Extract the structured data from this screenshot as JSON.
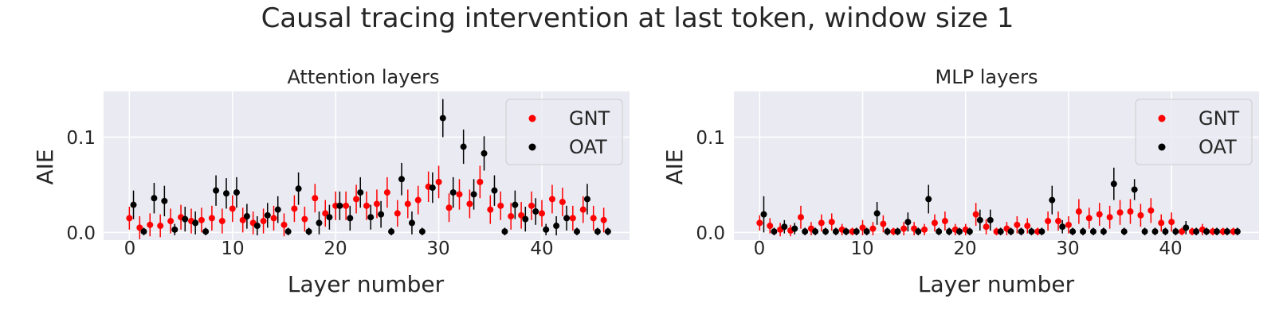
{
  "figure": {
    "title": "Causal tracing intervention at last token, window size 1"
  },
  "colors": {
    "panel_bg": "#eaeaf2",
    "grid": "#ffffff",
    "text": "#262626",
    "GNT": "#ff0000",
    "OAT": "#000000"
  },
  "chart_data": [
    {
      "type": "scatter",
      "title": "Attention layers",
      "xlabel": "Layer number",
      "ylabel": "AIE",
      "xlim": [
        -2.5,
        48.5
      ],
      "ylim": [
        -0.008,
        0.148
      ],
      "xticks": [
        0,
        10,
        20,
        30,
        40
      ],
      "xtick_labels": [
        "0",
        "10",
        "20",
        "30",
        "40"
      ],
      "yticks": [
        0.0,
        0.1
      ],
      "ytick_labels": [
        "0.0",
        "0.1"
      ],
      "legend": {
        "position": "top-right",
        "entries": [
          "GNT",
          "OAT"
        ]
      },
      "series": [
        {
          "name": "GNT",
          "x": [
            0,
            1,
            2,
            3,
            4,
            5,
            6,
            7,
            8,
            9,
            10,
            11,
            12,
            13,
            14,
            15,
            16,
            17,
            18,
            19,
            20,
            21,
            22,
            23,
            24,
            25,
            26,
            27,
            28,
            29,
            30,
            31,
            32,
            33,
            34,
            35,
            36,
            37,
            38,
            39,
            40,
            41,
            42,
            43,
            44,
            45,
            46
          ],
          "y": [
            0.015,
            0.005,
            0.008,
            0.007,
            0.012,
            0.016,
            0.012,
            0.013,
            0.015,
            0.012,
            0.025,
            0.013,
            0.01,
            0.012,
            0.015,
            0.008,
            0.025,
            0.014,
            0.036,
            0.02,
            0.028,
            0.028,
            0.035,
            0.028,
            0.03,
            0.042,
            0.02,
            0.03,
            0.034,
            0.048,
            0.053,
            0.026,
            0.04,
            0.03,
            0.053,
            0.024,
            0.028,
            0.017,
            0.018,
            0.028,
            0.02,
            0.035,
            0.032,
            0.015,
            0.024,
            0.015,
            0.013
          ],
          "err": [
            0.012,
            0.012,
            0.012,
            0.012,
            0.013,
            0.013,
            0.013,
            0.013,
            0.013,
            0.013,
            0.014,
            0.013,
            0.012,
            0.013,
            0.013,
            0.012,
            0.014,
            0.013,
            0.015,
            0.014,
            0.015,
            0.015,
            0.015,
            0.015,
            0.015,
            0.016,
            0.014,
            0.015,
            0.015,
            0.016,
            0.017,
            0.015,
            0.016,
            0.015,
            0.017,
            0.015,
            0.015,
            0.014,
            0.014,
            0.015,
            0.014,
            0.015,
            0.015,
            0.013,
            0.014,
            0.013,
            0.013
          ]
        },
        {
          "name": "OAT",
          "x": [
            0.4,
            1.4,
            2.4,
            3.4,
            4.4,
            5.4,
            6.4,
            7.4,
            8.4,
            9.4,
            10.4,
            11.4,
            12.4,
            13.4,
            14.4,
            15.4,
            16.4,
            17.4,
            18.4,
            19.4,
            20.4,
            21.4,
            22.4,
            23.4,
            24.4,
            25.4,
            26.4,
            27.4,
            28.4,
            29.4,
            30.4,
            31.4,
            32.4,
            33.4,
            34.4,
            35.4,
            36.4,
            37.4,
            38.4,
            39.4,
            40.4,
            41.4,
            42.4,
            43.4,
            44.4,
            45.4,
            46.4
          ],
          "y": [
            0.029,
            0.001,
            0.036,
            0.033,
            0.003,
            0.014,
            0.01,
            0.001,
            0.044,
            0.041,
            0.042,
            0.017,
            0.007,
            0.018,
            0.024,
            0.001,
            0.046,
            0.001,
            0.01,
            0.016,
            0.028,
            0.015,
            0.042,
            0.016,
            0.019,
            0.001,
            0.056,
            0.01,
            0.001,
            0.047,
            0.12,
            0.042,
            0.09,
            0.04,
            0.083,
            0.044,
            0.001,
            0.029,
            0.014,
            0.022,
            0.003,
            0.007,
            0.015,
            0.001,
            0.035,
            0.001,
            0.001
          ],
          "err": [
            0.015,
            0.004,
            0.016,
            0.016,
            0.006,
            0.013,
            0.012,
            0.004,
            0.016,
            0.016,
            0.016,
            0.013,
            0.01,
            0.013,
            0.014,
            0.004,
            0.017,
            0.004,
            0.012,
            0.013,
            0.015,
            0.013,
            0.016,
            0.013,
            0.014,
            0.004,
            0.017,
            0.012,
            0.004,
            0.016,
            0.02,
            0.016,
            0.018,
            0.016,
            0.018,
            0.016,
            0.004,
            0.015,
            0.013,
            0.014,
            0.006,
            0.01,
            0.013,
            0.004,
            0.016,
            0.004,
            0.004
          ]
        }
      ]
    },
    {
      "type": "scatter",
      "title": "MLP layers",
      "xlabel": "Layer number",
      "ylabel": "AIE",
      "xlim": [
        -2.5,
        48.5
      ],
      "ylim": [
        -0.008,
        0.148
      ],
      "xticks": [
        0,
        10,
        20,
        30,
        40
      ],
      "xtick_labels": [
        "0",
        "10",
        "20",
        "30",
        "40"
      ],
      "yticks": [
        0.0,
        0.1
      ],
      "ytick_labels": [
        "0.0",
        "0.1"
      ],
      "legend": {
        "position": "top-right",
        "entries": [
          "GNT",
          "OAT"
        ]
      },
      "series": [
        {
          "name": "GNT",
          "x": [
            0,
            1,
            2,
            3,
            4,
            5,
            6,
            7,
            8,
            9,
            10,
            11,
            12,
            13,
            14,
            15,
            16,
            17,
            18,
            19,
            20,
            21,
            22,
            23,
            24,
            25,
            26,
            27,
            28,
            29,
            30,
            31,
            32,
            33,
            34,
            35,
            36,
            37,
            38,
            39,
            40,
            41,
            42,
            43,
            44,
            45,
            46
          ],
          "y": [
            0.01,
            0.007,
            0.003,
            0.002,
            0.016,
            0.004,
            0.01,
            0.011,
            0.003,
            0.001,
            0.005,
            0.004,
            0.009,
            0.001,
            0.004,
            0.004,
            0.003,
            0.01,
            0.012,
            0.003,
            0.003,
            0.019,
            0.006,
            0.001,
            0.004,
            0.008,
            0.007,
            0.001,
            0.012,
            0.012,
            0.008,
            0.022,
            0.015,
            0.019,
            0.016,
            0.021,
            0.022,
            0.018,
            0.023,
            0.01,
            0.011,
            0.001,
            0.001,
            0.003,
            0.001,
            0.001,
            0.001
          ],
          "err": [
            0.008,
            0.008,
            0.007,
            0.006,
            0.012,
            0.007,
            0.009,
            0.009,
            0.006,
            0.004,
            0.008,
            0.007,
            0.009,
            0.004,
            0.007,
            0.007,
            0.006,
            0.009,
            0.01,
            0.006,
            0.006,
            0.012,
            0.008,
            0.004,
            0.007,
            0.009,
            0.008,
            0.004,
            0.01,
            0.01,
            0.009,
            0.013,
            0.011,
            0.012,
            0.012,
            0.013,
            0.013,
            0.012,
            0.013,
            0.009,
            0.01,
            0.004,
            0.004,
            0.006,
            0.004,
            0.004,
            0.004
          ]
        },
        {
          "name": "OAT",
          "x": [
            0.4,
            1.4,
            2.4,
            3.4,
            4.4,
            5.4,
            6.4,
            7.4,
            8.4,
            9.4,
            10.4,
            11.4,
            12.4,
            13.4,
            14.4,
            15.4,
            16.4,
            17.4,
            18.4,
            19.4,
            20.4,
            21.4,
            22.4,
            23.4,
            24.4,
            25.4,
            26.4,
            27.4,
            28.4,
            29.4,
            30.4,
            31.4,
            32.4,
            33.4,
            34.4,
            35.4,
            36.4,
            37.4,
            38.4,
            39.4,
            40.4,
            41.4,
            42.4,
            43.4,
            44.4,
            45.4,
            46.4
          ],
          "y": [
            0.019,
            0.001,
            0.006,
            0.004,
            0.001,
            0.001,
            0.001,
            0.001,
            0.001,
            0.001,
            0.001,
            0.02,
            0.001,
            0.001,
            0.011,
            0.001,
            0.035,
            0.001,
            0.001,
            0.001,
            0.001,
            0.013,
            0.013,
            0.001,
            0.001,
            0.001,
            0.001,
            0.001,
            0.034,
            0.006,
            0.001,
            0.001,
            0.001,
            0.001,
            0.051,
            0.001,
            0.045,
            0.001,
            0.001,
            0.001,
            0.001,
            0.005,
            0.001,
            0.001,
            0.001,
            0.001,
            0.001
          ],
          "err": [
            0.019,
            0.004,
            0.007,
            0.006,
            0.004,
            0.004,
            0.004,
            0.004,
            0.004,
            0.004,
            0.004,
            0.012,
            0.004,
            0.004,
            0.01,
            0.004,
            0.015,
            0.004,
            0.004,
            0.004,
            0.004,
            0.011,
            0.011,
            0.004,
            0.004,
            0.004,
            0.004,
            0.004,
            0.015,
            0.007,
            0.004,
            0.004,
            0.004,
            0.004,
            0.017,
            0.004,
            0.011,
            0.004,
            0.004,
            0.004,
            0.004,
            0.007,
            0.004,
            0.004,
            0.004,
            0.004,
            0.004
          ]
        }
      ]
    }
  ]
}
